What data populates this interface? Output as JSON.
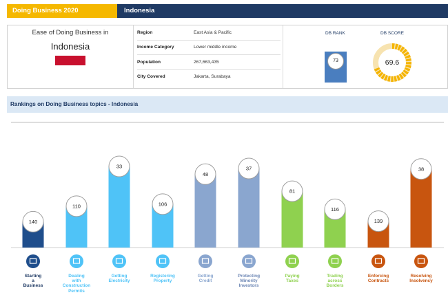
{
  "header": {
    "left_title": "Doing Business 2020",
    "right_title": "Indonesia",
    "left_color": "#f5b800",
    "right_color": "#1f3a64"
  },
  "summary": {
    "heading": "Ease of Doing Business in",
    "economy": "Indonesia",
    "flag_color": "#c8102e",
    "rows": [
      {
        "key": "Region",
        "value": "East Asia & Pacific"
      },
      {
        "key": "Income Category",
        "value": "Lower middle income"
      },
      {
        "key": "Population",
        "value": "267,663,435"
      },
      {
        "key": "City Covered",
        "value": "Jakarta, Surabaya"
      }
    ],
    "db_rank_label": "DB RANK",
    "db_rank": "73",
    "db_score_label": "DB SCORE",
    "db_score": "69.6"
  },
  "section_title": "Rankings on Doing Business topics - Indonesia",
  "chart_data": {
    "type": "bar",
    "categories": [
      "Starting a Business",
      "Dealing with Construction Permits",
      "Getting Electricity",
      "Registering Property",
      "Getting Credit",
      "Protecting Minority Investors",
      "Paying Taxes",
      "Trading across Borders",
      "Enforcing Contracts",
      "Resolving Insolvency"
    ],
    "category_lines": [
      [
        "Starting",
        "a",
        "Business"
      ],
      [
        "Dealing",
        "with",
        "Construction",
        "Permits"
      ],
      [
        "Getting",
        "Electricity"
      ],
      [
        "Registering",
        "Property"
      ],
      [
        "Getting",
        "Credit"
      ],
      [
        "Protecting",
        "Minority",
        "Investors"
      ],
      [
        "Paying",
        "Taxes"
      ],
      [
        "Trading",
        "across",
        "Borders"
      ],
      [
        "Enforcing",
        "Contracts"
      ],
      [
        "Resolving",
        "Insolvency"
      ]
    ],
    "values": [
      140,
      110,
      33,
      106,
      48,
      37,
      81,
      116,
      139,
      38
    ],
    "value_labels": [
      "140",
      "110",
      "33",
      "106",
      "48",
      "37",
      "81",
      "116",
      "139",
      "38"
    ],
    "icons": [
      "briefcase-icon",
      "wrench-icon",
      "lightning-icon",
      "building-icon",
      "wallet-icon",
      "trend-icon",
      "money-icon",
      "truck-icon",
      "courthouse-icon",
      "gavel-icon"
    ],
    "colors": [
      "#1f4e8c",
      "#4fc3f7",
      "#4fc3f7",
      "#4fc3f7",
      "#8aa6cf",
      "#8aa6cf",
      "#8fd14f",
      "#8fd14f",
      "#c8550f",
      "#c8550f"
    ],
    "label_colors": [
      "#1f3a64",
      "#4fc3f7",
      "#4fc3f7",
      "#4fc3f7",
      "#8aa6cf",
      "#6c86b4",
      "#8fd14f",
      "#8fd14f",
      "#c8550f",
      "#c8550f"
    ],
    "rank_max": 190,
    "title": "",
    "xlabel": "",
    "ylabel": ""
  }
}
